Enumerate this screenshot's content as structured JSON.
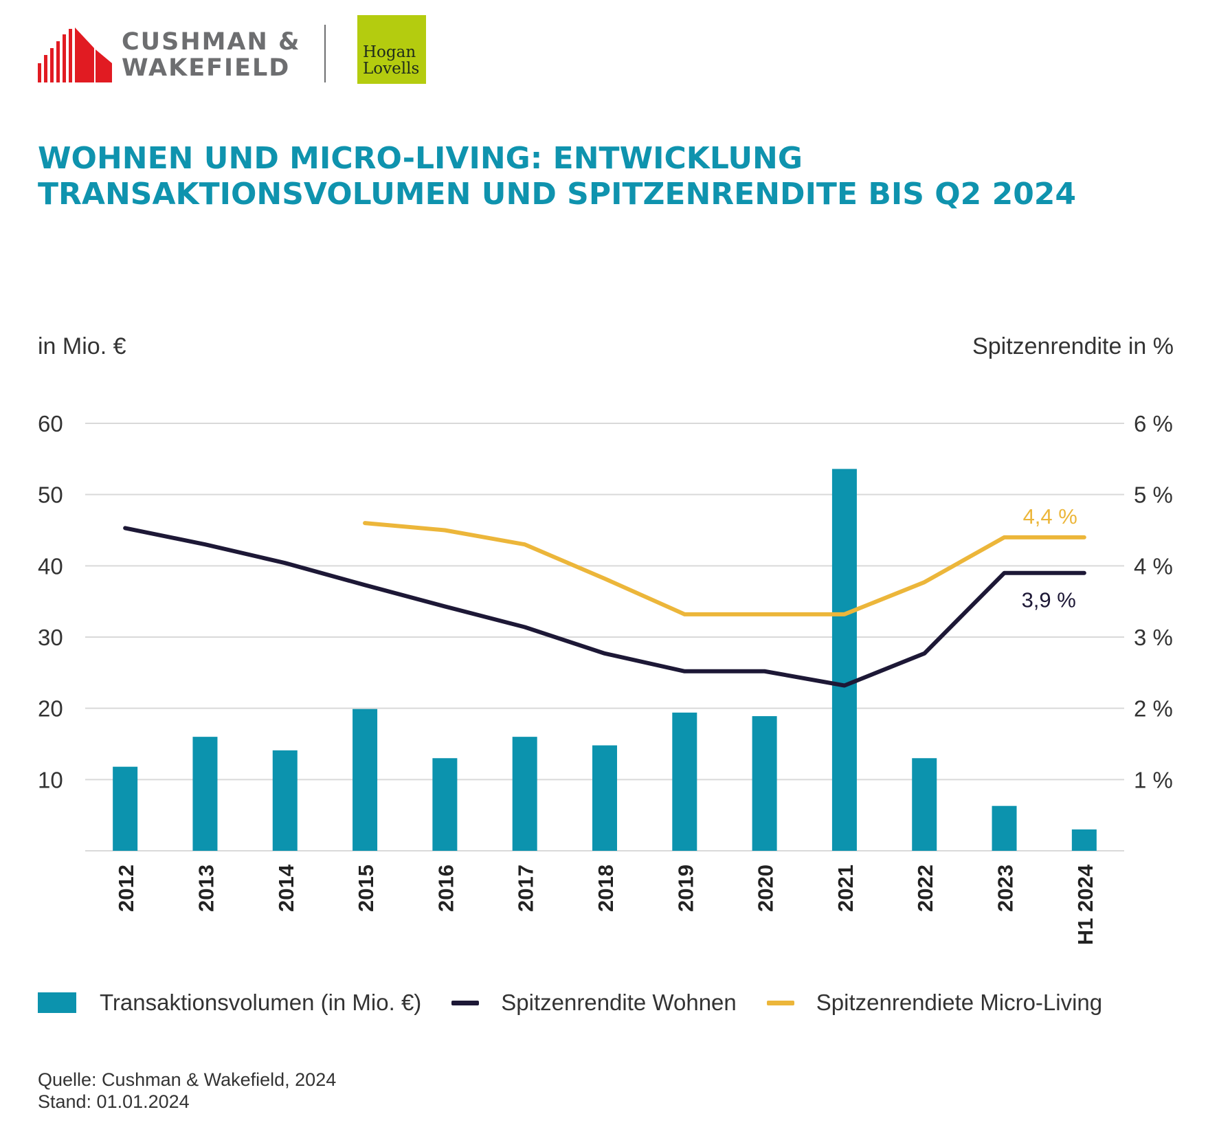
{
  "logos": {
    "cushman_line1": "CUSHMAN &",
    "cushman_line2": "WAKEFIELD",
    "hogan_line1": "Hogan",
    "hogan_line2": "Lovells"
  },
  "title": {
    "line1": "WOHNEN UND MICRO-LIVING: ENTWICKLUNG",
    "line2": "TRANSAKTIONSVOLUMEN UND SPITZENRENDITE BIS Q2 2024"
  },
  "colors": {
    "bar": "#0c93ae",
    "wohnen": "#1d1836",
    "micro": "#ecb63a",
    "title": "#0f93ae",
    "grid": "#d9d9d9"
  },
  "chart_data": {
    "type": "bar",
    "title": "WOHNEN UND MICRO-LIVING: ENTWICKLUNG TRANSAKTIONSVOLUMEN UND SPITZENRENDITE BIS Q2 2024",
    "ylabel": "in Mio. €",
    "y2label": "Spitzenrendite in %",
    "categories": [
      "2012",
      "2013",
      "2014",
      "2015",
      "2016",
      "2017",
      "2018",
      "2019",
      "2020",
      "2021",
      "2022",
      "2023",
      "H1 2024"
    ],
    "ylim": [
      0,
      60
    ],
    "yticks": [
      10,
      20,
      30,
      40,
      50,
      60
    ],
    "y2lim": [
      0,
      6
    ],
    "y2ticks": [
      1,
      2,
      3,
      4,
      5,
      6
    ],
    "y2tick_labels": [
      "1 %",
      "2 %",
      "3 %",
      "4 %",
      "5 %",
      "6 %"
    ],
    "grid": true,
    "series": [
      {
        "name": "Transaktionsvolumen (in Mio. €)",
        "type": "bar",
        "axis": "left",
        "values": [
          11.8,
          16.0,
          14.1,
          19.9,
          13.0,
          16.0,
          14.8,
          19.4,
          18.9,
          53.6,
          13.0,
          6.3,
          3.0
        ]
      },
      {
        "name": "Spitzenrendite Wohnen",
        "type": "line",
        "axis": "right",
        "values": [
          4.53,
          4.3,
          4.04,
          3.73,
          3.43,
          3.14,
          2.77,
          2.52,
          2.52,
          2.32,
          2.77,
          3.9,
          3.9
        ],
        "end_label": "3,9 %"
      },
      {
        "name": "Spitzenrendiete Micro-Living",
        "type": "line",
        "axis": "right",
        "values": [
          null,
          null,
          null,
          4.6,
          4.5,
          4.3,
          3.82,
          3.32,
          3.32,
          3.32,
          3.77,
          4.4,
          4.4
        ],
        "end_label": "4,4 %"
      }
    ],
    "legend": "bottom"
  },
  "source": {
    "line1": "Quelle: Cushman & Wakefield, 2024",
    "line2": "Stand: 01.01.2024"
  }
}
